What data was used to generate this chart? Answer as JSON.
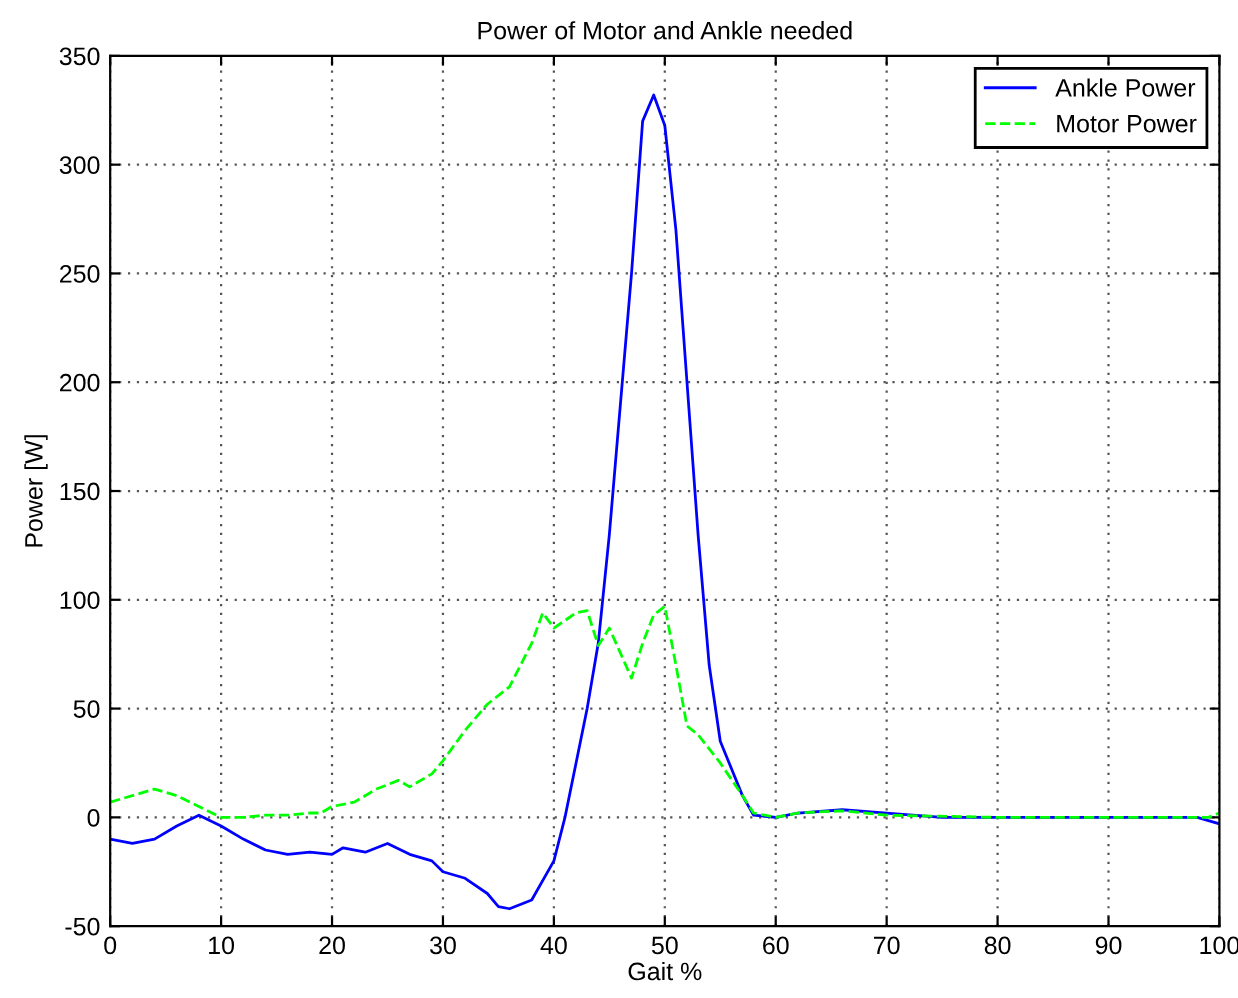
{
  "chart_data": {
    "type": "line",
    "title": "Power of Motor and Ankle needed",
    "xlabel": "Gait %",
    "ylabel": "Power [W]",
    "xlim": [
      0,
      100
    ],
    "ylim": [
      -50,
      350
    ],
    "xticks": [
      0,
      10,
      20,
      30,
      40,
      50,
      60,
      70,
      80,
      90,
      100
    ],
    "yticks": [
      -50,
      0,
      50,
      100,
      150,
      200,
      250,
      300,
      350
    ],
    "grid": true,
    "legend": "top right",
    "series": [
      {
        "name": "Ankle Power",
        "color": "#0000ff",
        "line_style": "solid",
        "x": [
          0,
          2,
          4,
          6,
          8,
          10,
          12,
          14,
          16,
          18,
          20,
          21,
          23,
          25,
          27,
          29,
          30,
          32,
          34,
          35,
          36,
          38,
          40,
          41,
          43,
          44,
          45,
          46,
          47,
          48,
          49,
          50,
          51,
          52,
          53,
          54,
          55,
          57,
          58,
          60,
          62,
          66,
          70,
          75,
          80,
          90,
          98,
          100
        ],
        "values": [
          -10,
          -12,
          -10,
          -4,
          1,
          -4,
          -10,
          -15,
          -17,
          -16,
          -17,
          -14,
          -16,
          -12,
          -17,
          -20,
          -25,
          -28,
          -35,
          -41,
          -42,
          -38,
          -20,
          0,
          50,
          80,
          130,
          190,
          250,
          320,
          332,
          318,
          270,
          200,
          130,
          70,
          35,
          10,
          1,
          0,
          2,
          3.5,
          2,
          0,
          0,
          0,
          0,
          -3
        ]
      },
      {
        "name": "Motor Power",
        "color": "#00ff00",
        "line_style": "dashed",
        "x": [
          0,
          2,
          4,
          6,
          8,
          10,
          12,
          14,
          16,
          18,
          19,
          20,
          22,
          24,
          26,
          27,
          29,
          30,
          32,
          34,
          36,
          38,
          39,
          40,
          42,
          43,
          44,
          45,
          47,
          48,
          49,
          50,
          51,
          52,
          53,
          55,
          57,
          58,
          60,
          62,
          66,
          70,
          80,
          90,
          99,
          100
        ],
        "values": [
          7,
          10,
          13,
          10,
          5,
          0,
          0,
          1,
          1,
          2,
          2,
          5,
          7,
          13,
          17,
          14,
          20,
          26,
          40,
          52,
          60,
          80,
          94,
          87,
          94,
          95,
          79,
          87,
          64,
          80,
          93,
          97,
          70,
          42,
          38,
          25,
          10,
          2,
          0,
          2,
          3,
          1,
          0,
          0,
          0,
          2
        ]
      }
    ]
  }
}
